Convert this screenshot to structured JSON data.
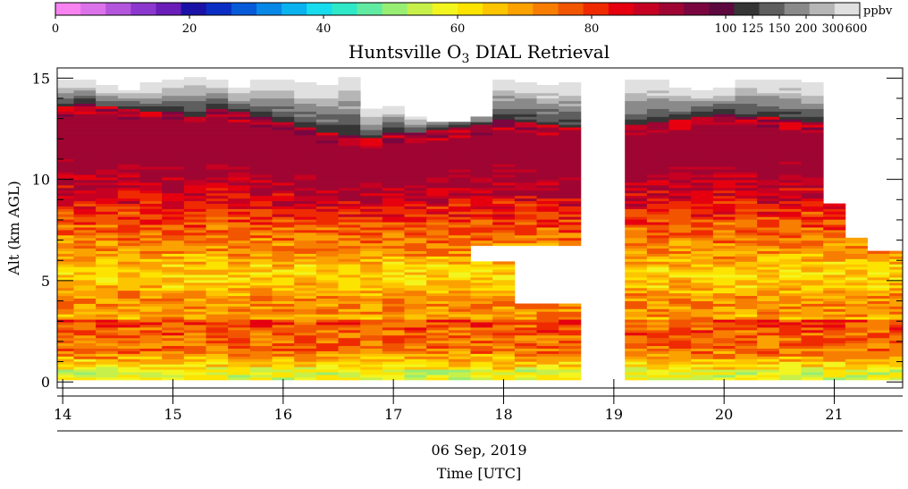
{
  "chart_data": {
    "type": "heatmap",
    "title_prefix": "Huntsville O",
    "title_sub": "3",
    "title_suffix": " DIAL Retrieval",
    "xlabel": "Time [UTC]",
    "date_label": "06 Sep, 2019",
    "ylabel": "Alt (km AGL)",
    "colorbar_unit": "ppbv",
    "colorbar_ticks": [
      "0",
      "20",
      "40",
      "60",
      "80",
      "100",
      "125",
      "150",
      "200",
      "300",
      "600"
    ],
    "x_ticks": [
      "14",
      "15",
      "16",
      "17",
      "18",
      "19",
      "20",
      "21"
    ],
    "y_ticks": [
      "0",
      "5",
      "10",
      "15"
    ],
    "xlim": [
      13.95,
      21.62
    ],
    "ylim": [
      -0.3,
      15.5
    ],
    "colormap": [
      "#f883f0",
      "#dc72ea",
      "#b356dc",
      "#8c38cf",
      "#6a1db8",
      "#1a12a6",
      "#0a2ec4",
      "#075ad8",
      "#0787e6",
      "#0ab2ef",
      "#17dcee",
      "#2ee8c8",
      "#61eba2",
      "#98ee72",
      "#c8f04a",
      "#f3f51f",
      "#fde400",
      "#fdc400",
      "#fba200",
      "#f77e00",
      "#f25500",
      "#ef2a00",
      "#e6000f",
      "#c60022",
      "#9f0532",
      "#7a0640",
      "#5e0840",
      "#353535",
      "#5e5e5e",
      "#8a8a8a",
      "#b6b6b6",
      "#e0e0e0"
    ],
    "profiles": [
      {
        "t": 14.0,
        "top": 14.9,
        "trop": 13.1
      },
      {
        "t": 14.2,
        "top": 14.8,
        "trop": 13.2
      },
      {
        "t": 14.4,
        "top": 14.6,
        "trop": 13.0
      },
      {
        "t": 14.6,
        "top": 14.4,
        "trop": 12.9
      },
      {
        "t": 14.8,
        "top": 14.7,
        "trop": 12.8
      },
      {
        "t": 15.0,
        "top": 14.8,
        "trop": 12.8
      },
      {
        "t": 15.2,
        "top": 15.0,
        "trop": 12.6
      },
      {
        "t": 15.4,
        "top": 14.9,
        "trop": 12.9
      },
      {
        "t": 15.6,
        "top": 14.5,
        "trop": 12.8
      },
      {
        "t": 15.8,
        "top": 14.9,
        "trop": 12.5
      },
      {
        "t": 16.0,
        "top": 14.8,
        "trop": 12.3
      },
      {
        "t": 16.2,
        "top": 14.7,
        "trop": 12.0
      },
      {
        "t": 16.4,
        "top": 14.6,
        "trop": 11.7
      },
      {
        "t": 16.6,
        "top": 15.0,
        "trop": 11.6
      },
      {
        "t": 16.8,
        "top": 13.4,
        "trop": 11.5
      },
      {
        "t": 17.0,
        "top": 13.6,
        "trop": 11.8
      },
      {
        "t": 17.2,
        "top": 13.1,
        "trop": 11.7
      },
      {
        "t": 17.4,
        "top": 12.8,
        "trop": 11.9
      },
      {
        "t": 17.6,
        "top": 12.8,
        "trop": 12.0
      },
      {
        "t": 17.8,
        "top": 13.0,
        "trop": 12.1
      },
      {
        "t": 18.0,
        "top": 14.8,
        "trop": 12.4
      },
      {
        "t": 18.2,
        "top": 14.7,
        "trop": 12.3
      },
      {
        "t": 18.4,
        "top": 14.6,
        "trop": 12.1
      },
      {
        "t": 18.6,
        "top": 14.7,
        "trop": 12.0
      },
      {
        "t": 19.2,
        "top": 14.9,
        "trop": 12.1
      },
      {
        "t": 19.4,
        "top": 14.8,
        "trop": 12.3
      },
      {
        "t": 19.6,
        "top": 14.5,
        "trop": 12.4
      },
      {
        "t": 19.8,
        "top": 14.3,
        "trop": 12.6
      },
      {
        "t": 20.0,
        "top": 14.5,
        "trop": 12.7
      },
      {
        "t": 20.2,
        "top": 14.9,
        "trop": 12.6
      },
      {
        "t": 20.4,
        "top": 14.8,
        "trop": 12.5
      },
      {
        "t": 20.6,
        "top": 14.9,
        "trop": 12.4
      },
      {
        "t": 20.8,
        "top": 14.7,
        "trop": 12.3
      }
    ],
    "cutoffs": [
      {
        "x0": 13.95,
        "x1": 17.8,
        "top": null,
        "bottom": 0.0
      },
      {
        "x0": 17.8,
        "x1": 18.05,
        "top": null,
        "bottom": 6.7,
        "upper_top": 5.9
      },
      {
        "x0": 18.05,
        "x1": 18.75,
        "top": null,
        "bottom": 6.7,
        "upper_top": 3.8
      },
      {
        "x0": 19.15,
        "x1": 19.35,
        "top": null,
        "bottom": 6.7,
        "upper_top": 9.5
      },
      {
        "x0": 19.35,
        "x1": 20.95,
        "top": null,
        "bottom": 0.0
      },
      {
        "x0": 20.95,
        "x1": 21.1,
        "top": 8.8,
        "bottom": 0.0
      },
      {
        "x0": 21.1,
        "x1": 21.3,
        "top": 7.0,
        "bottom": 0.0
      },
      {
        "x0": 21.3,
        "x1": 21.62,
        "top": 6.4,
        "bottom": 0.0
      }
    ]
  }
}
